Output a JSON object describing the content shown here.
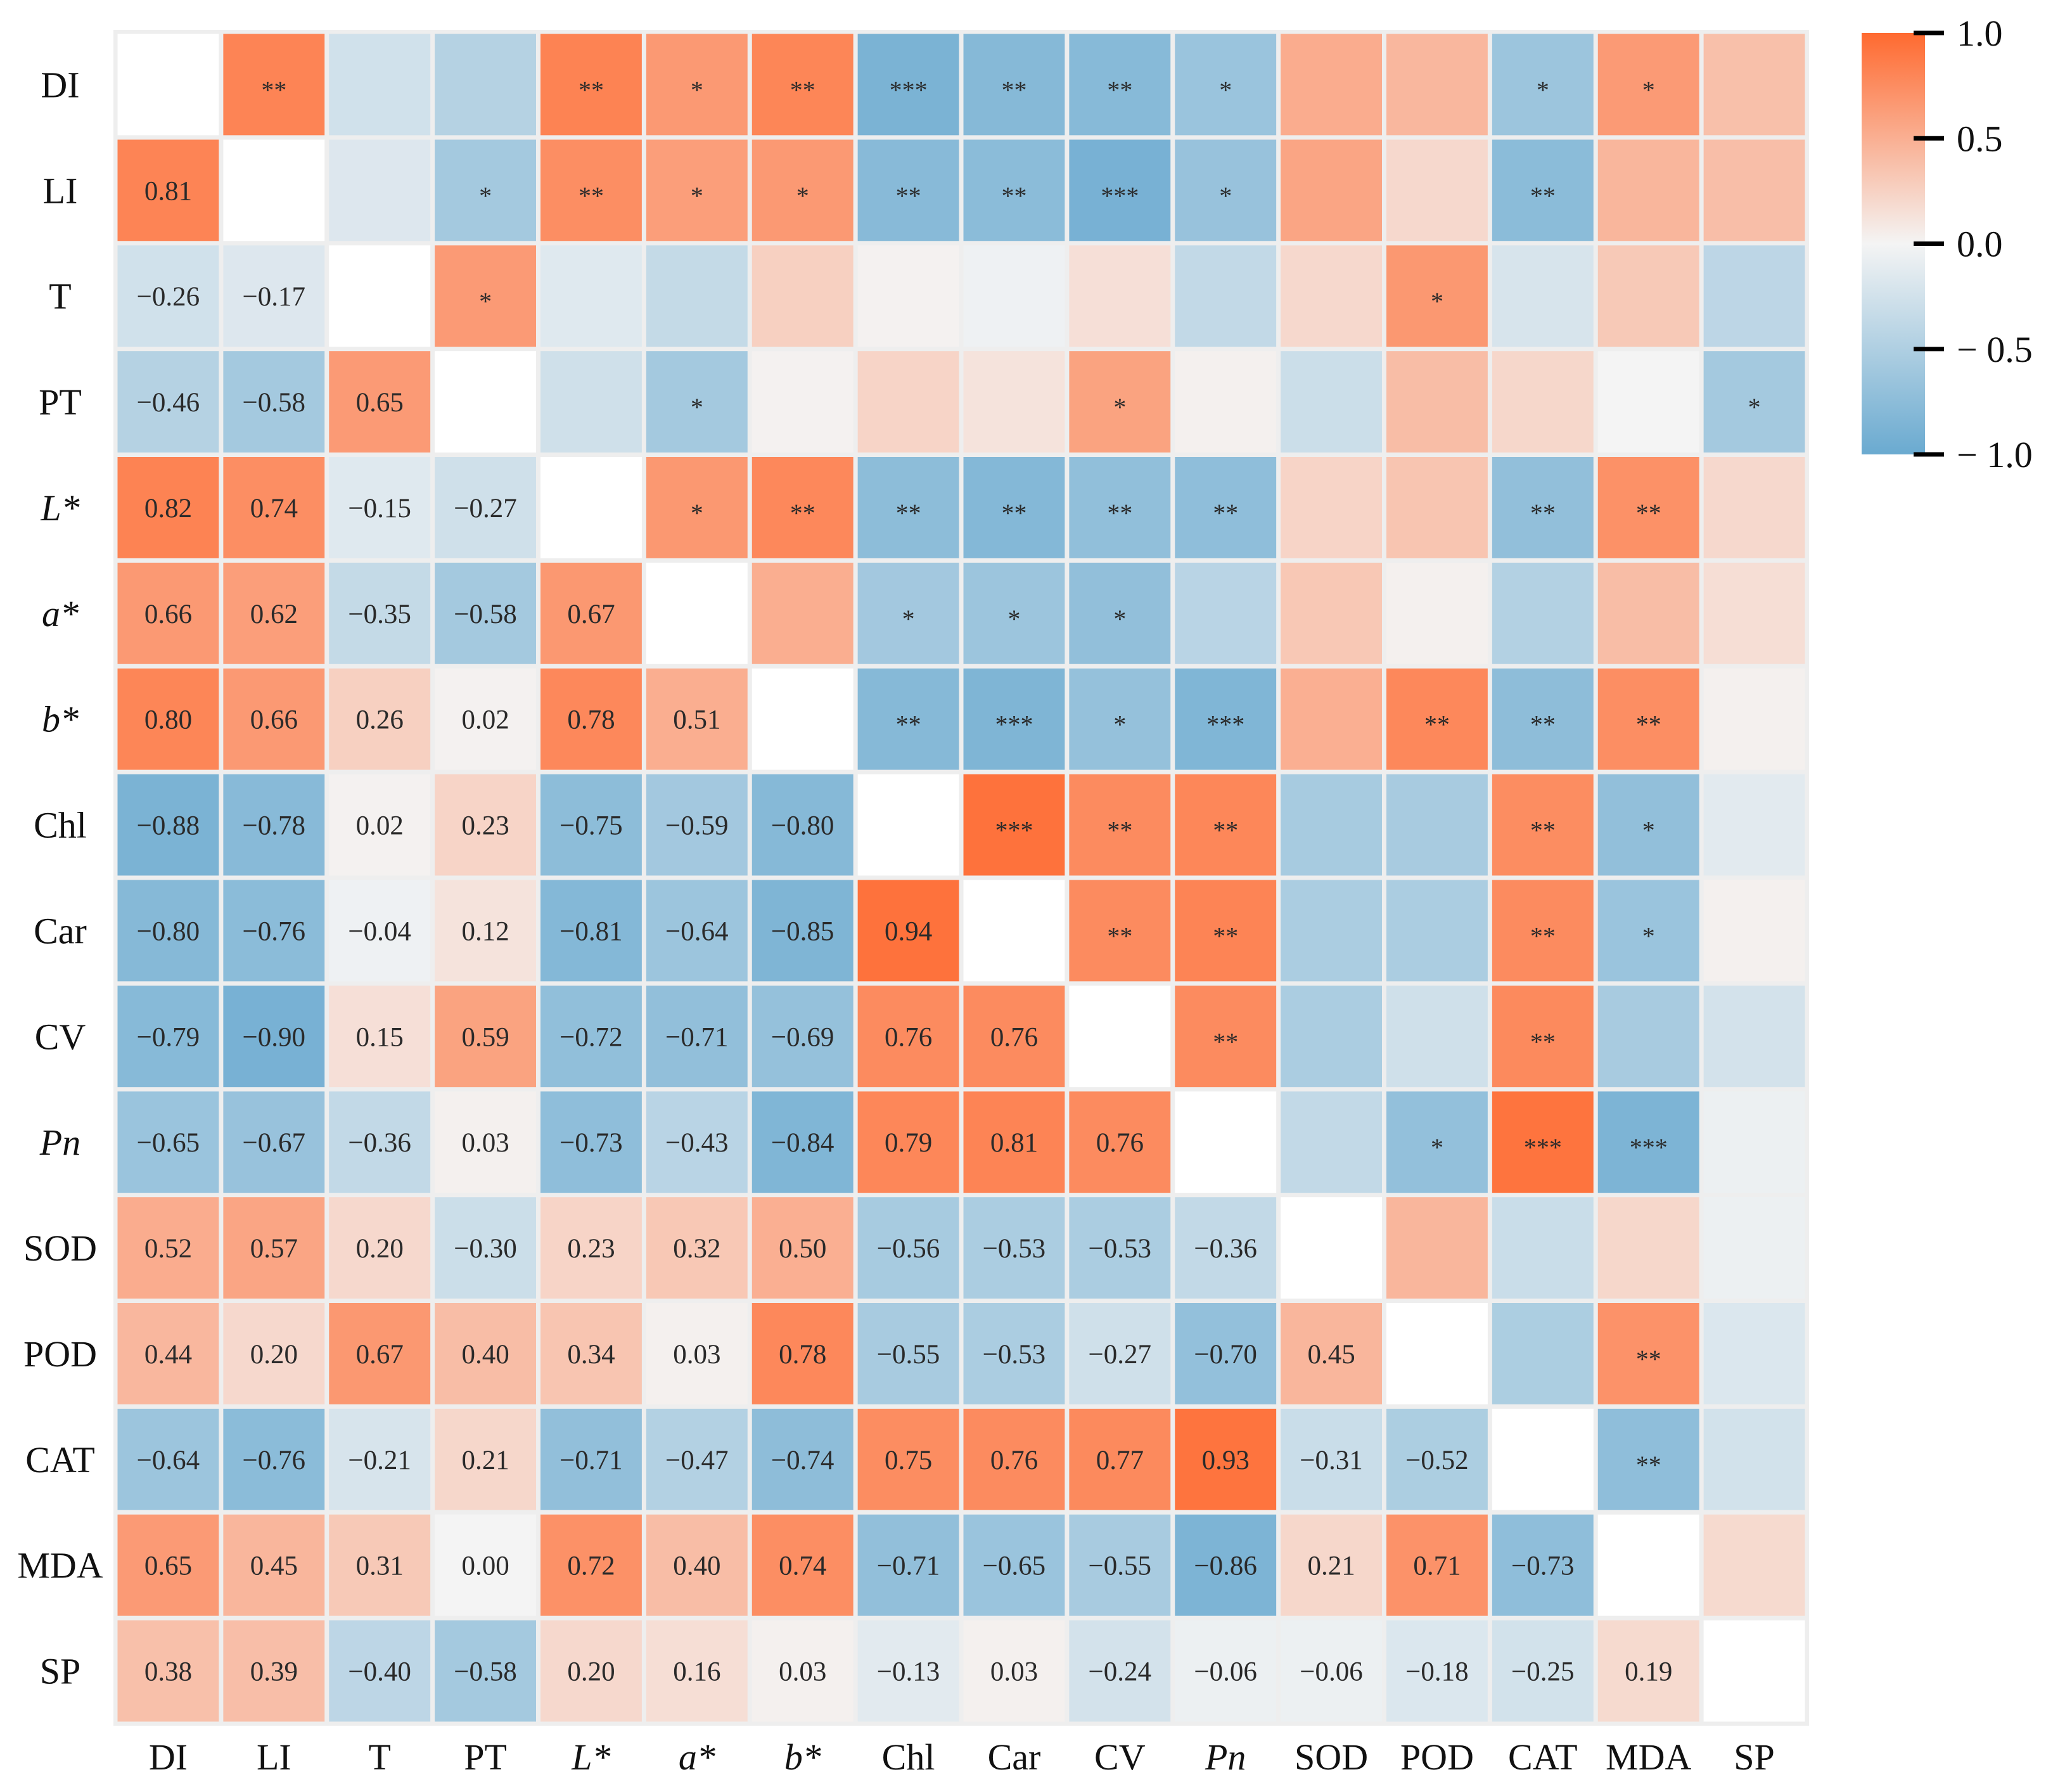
{
  "chart_data": {
    "type": "heatmap",
    "title": "",
    "xlabel": "",
    "ylabel": "",
    "labels": [
      "DI",
      "LI",
      "T",
      "PT",
      "L*",
      "a*",
      "b*",
      "Chl",
      "Car",
      "CV",
      "Pn",
      "SOD",
      "POD",
      "CAT",
      "MDA",
      "SP"
    ],
    "italic_labels": [
      "L*",
      "a*",
      "b*",
      "Pn"
    ],
    "lower_triangle_values": [
      [],
      [
        "0.81"
      ],
      [
        "−0.26",
        "−0.17"
      ],
      [
        "−0.46",
        "−0.58",
        "0.65"
      ],
      [
        "0.82",
        "0.74",
        "−0.15",
        "−0.27"
      ],
      [
        "0.66",
        "0.62",
        "−0.35",
        "−0.58",
        "0.67"
      ],
      [
        "0.80",
        "0.66",
        "0.26",
        "0.02",
        "0.78",
        "0.51"
      ],
      [
        "−0.88",
        "−0.78",
        "0.02",
        "0.23",
        "−0.75",
        "−0.59",
        "−0.80"
      ],
      [
        "−0.80",
        "−0.76",
        "−0.04",
        "0.12",
        "−0.81",
        "−0.64",
        "−0.85",
        "0.94"
      ],
      [
        "−0.79",
        "−0.90",
        "0.15",
        "0.59",
        "−0.72",
        "−0.71",
        "−0.69",
        "0.76",
        "0.76"
      ],
      [
        "−0.65",
        "−0.67",
        "−0.36",
        "0.03",
        "−0.73",
        "−0.43",
        "−0.84",
        "0.79",
        "0.81",
        "0.76"
      ],
      [
        "0.52",
        "0.57",
        "0.20",
        "−0.30",
        "0.23",
        "0.32",
        "0.50",
        "−0.56",
        "−0.53",
        "−0.53",
        "−0.36"
      ],
      [
        "0.44",
        "0.20",
        "0.67",
        "0.40",
        "0.34",
        "0.03",
        "0.78",
        "−0.55",
        "−0.53",
        "−0.27",
        "−0.70",
        "0.45"
      ],
      [
        "−0.64",
        "−0.76",
        "−0.21",
        "0.21",
        "−0.71",
        "−0.47",
        "−0.74",
        "0.75",
        "0.76",
        "0.77",
        "0.93",
        "−0.31",
        "−0.52"
      ],
      [
        "0.65",
        "0.45",
        "0.31",
        "0.00",
        "0.72",
        "0.40",
        "0.74",
        "−0.71",
        "−0.65",
        "−0.55",
        "−0.86",
        "0.21",
        "0.71",
        "−0.73"
      ],
      [
        "0.38",
        "0.39",
        "−0.40",
        "−0.58",
        "0.20",
        "0.16",
        "0.03",
        "−0.13",
        "0.03",
        "−0.24",
        "−0.06",
        "−0.06",
        "−0.18",
        "−0.25",
        "0.19"
      ]
    ],
    "upper_triangle_significance": [
      [
        [
          1,
          "**"
        ],
        [
          4,
          "**"
        ],
        [
          5,
          "*"
        ],
        [
          6,
          "**"
        ],
        [
          7,
          "***"
        ],
        [
          8,
          "**"
        ],
        [
          9,
          "**"
        ],
        [
          10,
          "*"
        ],
        [
          13,
          "*"
        ],
        [
          14,
          "*"
        ]
      ],
      [
        [
          3,
          "*"
        ],
        [
          4,
          "**"
        ],
        [
          5,
          "*"
        ],
        [
          6,
          "*"
        ],
        [
          7,
          "**"
        ],
        [
          8,
          "**"
        ],
        [
          9,
          "***"
        ],
        [
          10,
          "*"
        ],
        [
          13,
          "**"
        ]
      ],
      [
        [
          3,
          "*"
        ],
        [
          12,
          "*"
        ]
      ],
      [
        [
          5,
          "*"
        ],
        [
          9,
          "*"
        ],
        [
          15,
          "*"
        ]
      ],
      [
        [
          5,
          "*"
        ],
        [
          6,
          "**"
        ],
        [
          7,
          "**"
        ],
        [
          8,
          "**"
        ],
        [
          9,
          "**"
        ],
        [
          10,
          "**"
        ],
        [
          13,
          "**"
        ],
        [
          14,
          "**"
        ]
      ],
      [
        [
          7,
          "*"
        ],
        [
          8,
          "*"
        ],
        [
          9,
          "*"
        ]
      ],
      [
        [
          7,
          "**"
        ],
        [
          8,
          "***"
        ],
        [
          9,
          "*"
        ],
        [
          10,
          "***"
        ],
        [
          12,
          "**"
        ],
        [
          13,
          "**"
        ],
        [
          14,
          "**"
        ]
      ],
      [
        [
          8,
          "***"
        ],
        [
          9,
          "**"
        ],
        [
          10,
          "**"
        ],
        [
          13,
          "**"
        ],
        [
          14,
          "*"
        ]
      ],
      [
        [
          9,
          "**"
        ],
        [
          10,
          "**"
        ],
        [
          13,
          "**"
        ],
        [
          14,
          "*"
        ]
      ],
      [
        [
          10,
          "**"
        ],
        [
          13,
          "**"
        ]
      ],
      [
        [
          12,
          "*"
        ],
        [
          13,
          "***"
        ],
        [
          14,
          "***"
        ]
      ],
      [],
      [
        [
          14,
          "**"
        ]
      ],
      [
        [
          14,
          "**"
        ]
      ],
      [],
      []
    ],
    "colorbar": {
      "range": [
        -1.0,
        1.0
      ],
      "tick_values": [
        1.0,
        0.5,
        0.0,
        -0.5,
        -1.0
      ],
      "tick_labels": [
        "1.0",
        "0.5",
        "0.0",
        "− 0.5",
        "− 1.0"
      ],
      "low_color": "#6aaad0",
      "mid_color": "#f4f4f4",
      "high_color": "#ff6a30"
    }
  }
}
